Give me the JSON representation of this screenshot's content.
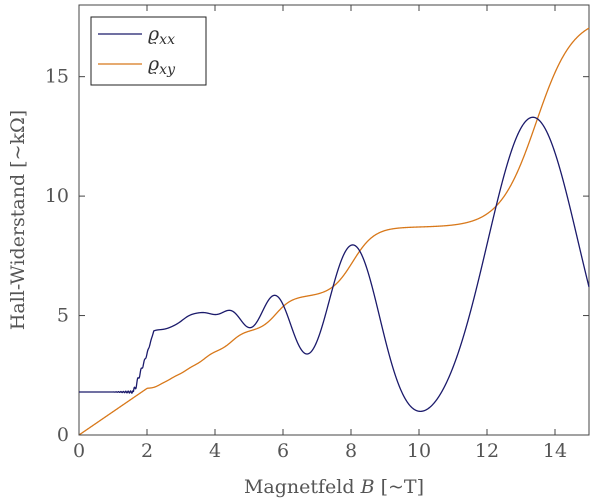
{
  "chart_data": {
    "type": "line",
    "xlabel": "Magnetfeld B [~T]",
    "ylabel": "Hall-Widerstand [~kΩ]",
    "xlim": [
      0,
      15
    ],
    "ylim": [
      0,
      18
    ],
    "x_ticks": [
      "0",
      "2",
      "4",
      "6",
      "8",
      "10",
      "12",
      "14"
    ],
    "y_ticks": [
      "0",
      "5",
      "10",
      "15"
    ],
    "legend_position": "top-left",
    "grid": false,
    "series": [
      {
        "name": "ϱxx",
        "color": "#1b1a6b",
        "baseline": 1.8,
        "peaks": [
          {
            "x": 1.6,
            "y": 1.9
          },
          {
            "x": 1.78,
            "y": 2.0
          },
          {
            "x": 2.03,
            "y": 2.1
          },
          {
            "x": 2.3,
            "y": 2.3
          },
          {
            "x": 2.65,
            "y": 2.6
          },
          {
            "x": 3.1,
            "y": 3.05
          },
          {
            "x": 3.65,
            "y": 3.6
          },
          {
            "x": 4.45,
            "y": 4.45
          },
          {
            "x": 5.75,
            "y": 5.65
          },
          {
            "x": 8.05,
            "y": 7.95
          },
          {
            "x": 13.35,
            "y": 13.3
          }
        ]
      },
      {
        "name": "ϱxy",
        "color": "#d8781a",
        "linear_until": 2.0,
        "steps": [
          {
            "x": 2.1,
            "y": 1.95
          },
          {
            "x": 2.45,
            "y": 2.2
          },
          {
            "x": 2.85,
            "y": 2.5
          },
          {
            "x": 3.35,
            "y": 2.9
          },
          {
            "x": 4.05,
            "y": 3.5
          },
          {
            "x": 5.1,
            "y": 4.35
          },
          {
            "x": 6.9,
            "y": 5.8
          },
          {
            "x": 10.6,
            "y": 8.7
          },
          {
            "x": 15.0,
            "y": 17.5
          }
        ]
      }
    ],
    "legend": {
      "rho_symbol": "ϱ",
      "xx_sub": "xx",
      "xy_sub": "xy",
      "b_symbol": "B"
    }
  }
}
